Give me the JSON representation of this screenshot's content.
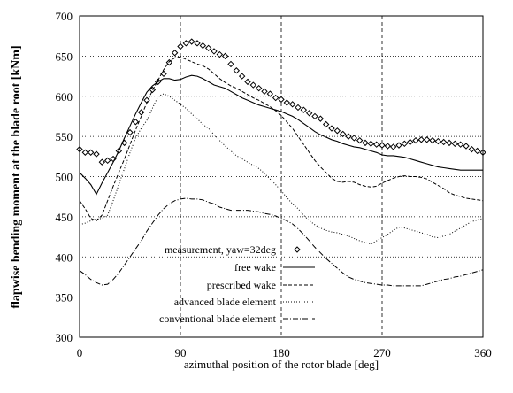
{
  "chart_data": {
    "type": "line",
    "xlabel": "azimuthal position of the rotor blade [deg]",
    "ylabel": "flapwise bending moment at the blade root [kNm]",
    "xlim": [
      0,
      360
    ],
    "ylim": [
      300,
      700
    ],
    "xticks": [
      0,
      90,
      180,
      270,
      360
    ],
    "yticks": [
      300,
      350,
      400,
      450,
      500,
      550,
      600,
      650,
      700
    ],
    "grid": {
      "vertical": "dashed",
      "horizontal": "dotted"
    },
    "legend_placement": "bottom-center",
    "series": [
      {
        "name": "measurement, yaw=32deg",
        "style": "diamond-markers",
        "x": [
          0,
          5,
          10,
          15,
          20,
          25,
          30,
          35,
          40,
          45,
          50,
          55,
          60,
          65,
          70,
          75,
          80,
          85,
          90,
          95,
          100,
          105,
          110,
          115,
          120,
          125,
          130,
          135,
          140,
          145,
          150,
          155,
          160,
          165,
          170,
          175,
          180,
          185,
          190,
          195,
          200,
          205,
          210,
          215,
          220,
          225,
          230,
          235,
          240,
          245,
          250,
          255,
          260,
          265,
          270,
          275,
          280,
          285,
          290,
          295,
          300,
          305,
          310,
          315,
          320,
          325,
          330,
          335,
          340,
          345,
          350,
          355,
          360
        ],
        "y": [
          534,
          530,
          530,
          528,
          518,
          520,
          522,
          532,
          542,
          555,
          568,
          580,
          595,
          608,
          618,
          628,
          642,
          654,
          662,
          666,
          668,
          666,
          663,
          660,
          656,
          652,
          650,
          640,
          632,
          625,
          618,
          614,
          610,
          606,
          603,
          598,
          596,
          592,
          590,
          586,
          583,
          579,
          575,
          572,
          565,
          560,
          557,
          553,
          550,
          548,
          545,
          542,
          541,
          540,
          539,
          538,
          537,
          539,
          541,
          543,
          545,
          546,
          546,
          545,
          544,
          543,
          542,
          541,
          540,
          538,
          534,
          532,
          530
        ]
      },
      {
        "name": "free wake",
        "style": "solid",
        "x": [
          0,
          5,
          10,
          15,
          20,
          25,
          30,
          35,
          40,
          45,
          50,
          55,
          60,
          65,
          70,
          75,
          80,
          85,
          90,
          95,
          100,
          105,
          110,
          115,
          120,
          125,
          130,
          135,
          140,
          145,
          150,
          155,
          160,
          165,
          170,
          175,
          180,
          185,
          190,
          195,
          200,
          205,
          210,
          215,
          220,
          225,
          230,
          235,
          240,
          245,
          250,
          255,
          260,
          265,
          270,
          275,
          280,
          285,
          290,
          295,
          300,
          305,
          310,
          315,
          320,
          325,
          330,
          335,
          340,
          345,
          350,
          355,
          360
        ],
        "y": [
          505,
          498,
          490,
          478,
          492,
          505,
          518,
          532,
          548,
          563,
          578,
          592,
          605,
          613,
          618,
          622,
          622,
          620,
          621,
          624,
          626,
          625,
          622,
          618,
          614,
          612,
          610,
          606,
          602,
          598,
          595,
          592,
          589,
          587,
          585,
          583,
          581,
          578,
          575,
          571,
          566,
          561,
          556,
          552,
          549,
          546,
          544,
          541,
          539,
          537,
          536,
          534,
          532,
          530,
          527,
          526,
          526,
          525,
          524,
          522,
          520,
          518,
          516,
          514,
          512,
          511,
          510,
          509,
          508,
          508,
          508,
          508,
          508
        ]
      },
      {
        "name": "prescribed wake",
        "style": "dashed",
        "x": [
          0,
          5,
          10,
          15,
          20,
          25,
          30,
          35,
          40,
          45,
          50,
          55,
          60,
          65,
          70,
          75,
          80,
          85,
          90,
          95,
          100,
          105,
          110,
          115,
          120,
          125,
          130,
          135,
          140,
          145,
          150,
          155,
          160,
          165,
          170,
          175,
          180,
          185,
          190,
          195,
          200,
          205,
          210,
          215,
          220,
          225,
          230,
          235,
          240,
          245,
          250,
          255,
          260,
          265,
          270,
          275,
          280,
          285,
          290,
          295,
          300,
          305,
          310,
          315,
          320,
          325,
          330,
          335,
          340,
          345,
          350,
          355,
          360
        ],
        "y": [
          470,
          460,
          448,
          445,
          452,
          470,
          488,
          505,
          522,
          540,
          558,
          575,
          592,
          607,
          620,
          633,
          643,
          648,
          649,
          646,
          643,
          640,
          638,
          634,
          628,
          622,
          617,
          613,
          610,
          606,
          602,
          598,
          595,
          591,
          587,
          582,
          576,
          568,
          560,
          550,
          540,
          530,
          520,
          512,
          505,
          498,
          494,
          493,
          494,
          493,
          490,
          488,
          487,
          488,
          492,
          495,
          498,
          500,
          501,
          500,
          500,
          499,
          497,
          493,
          489,
          485,
          480,
          477,
          475,
          473,
          472,
          471,
          470
        ]
      },
      {
        "name": "advanced blade element",
        "style": "dotted",
        "x": [
          0,
          5,
          10,
          15,
          20,
          25,
          30,
          35,
          40,
          45,
          50,
          55,
          60,
          65,
          70,
          75,
          80,
          85,
          90,
          95,
          100,
          105,
          110,
          115,
          120,
          125,
          130,
          135,
          140,
          145,
          150,
          155,
          160,
          165,
          170,
          175,
          180,
          185,
          190,
          195,
          200,
          205,
          210,
          215,
          220,
          225,
          230,
          235,
          240,
          245,
          250,
          255,
          260,
          265,
          270,
          275,
          280,
          285,
          290,
          295,
          300,
          305,
          310,
          315,
          320,
          325,
          330,
          335,
          340,
          345,
          350,
          355,
          360
        ],
        "y": [
          440,
          442,
          445,
          447,
          448,
          452,
          470,
          490,
          510,
          530,
          548,
          560,
          570,
          585,
          600,
          603,
          600,
          595,
          590,
          585,
          578,
          572,
          565,
          560,
          552,
          545,
          538,
          532,
          526,
          522,
          518,
          514,
          510,
          504,
          497,
          490,
          482,
          474,
          466,
          460,
          452,
          445,
          440,
          436,
          433,
          431,
          430,
          428,
          426,
          423,
          420,
          418,
          416,
          420,
          424,
          428,
          433,
          437,
          436,
          434,
          432,
          430,
          428,
          425,
          424,
          426,
          428,
          432,
          436,
          440,
          444,
          446,
          448
        ]
      },
      {
        "name": "conventional blade element",
        "style": "dash-dot",
        "x": [
          0,
          5,
          10,
          15,
          20,
          25,
          30,
          35,
          40,
          45,
          50,
          55,
          60,
          65,
          70,
          75,
          80,
          85,
          90,
          95,
          100,
          105,
          110,
          115,
          120,
          125,
          130,
          135,
          140,
          145,
          150,
          155,
          160,
          165,
          170,
          175,
          180,
          185,
          190,
          195,
          200,
          205,
          210,
          215,
          220,
          225,
          230,
          235,
          240,
          245,
          250,
          255,
          260,
          265,
          270,
          275,
          280,
          285,
          290,
          295,
          300,
          305,
          310,
          315,
          320,
          325,
          330,
          335,
          340,
          345,
          350,
          355,
          360
        ],
        "y": [
          383,
          378,
          372,
          368,
          365,
          366,
          372,
          380,
          390,
          400,
          410,
          420,
          432,
          442,
          452,
          460,
          466,
          470,
          472,
          473,
          472,
          472,
          471,
          468,
          466,
          462,
          460,
          458,
          458,
          458,
          458,
          457,
          456,
          454,
          453,
          451,
          448,
          445,
          441,
          435,
          428,
          420,
          412,
          405,
          398,
          392,
          386,
          380,
          375,
          372,
          370,
          368,
          367,
          366,
          365,
          365,
          364,
          364,
          364,
          364,
          364,
          364,
          366,
          368,
          370,
          372,
          373,
          375,
          376,
          378,
          380,
          382,
          384
        ]
      }
    ]
  }
}
